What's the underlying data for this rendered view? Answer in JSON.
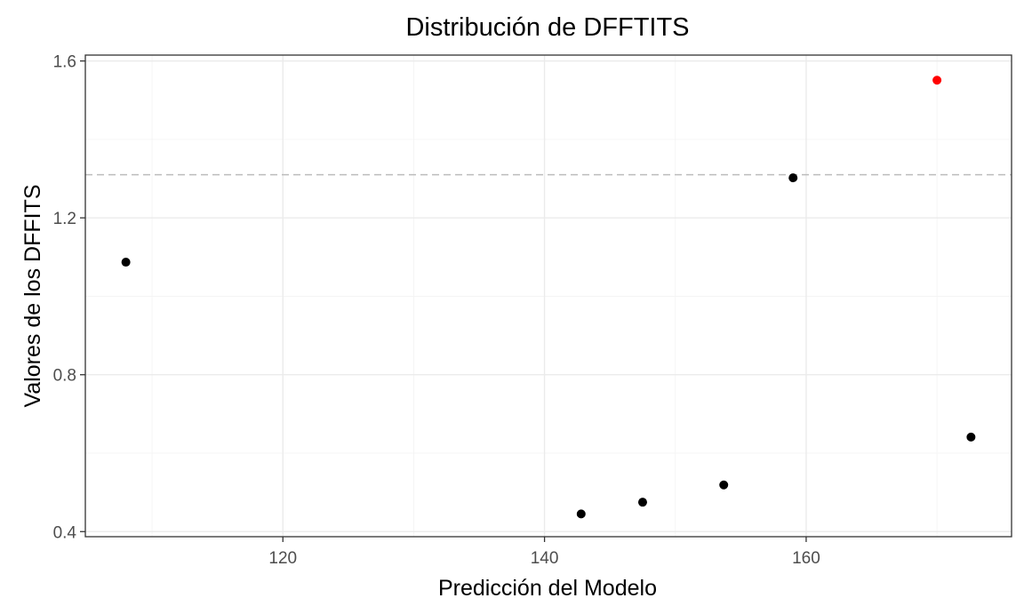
{
  "chart_data": {
    "type": "scatter",
    "title": "Distribución de DFFTITS",
    "xlabel": "Predicción del Modelo",
    "ylabel": "Valores de los DFFITS",
    "xlim": [
      104.9,
      175.7
    ],
    "ylim": [
      0.387,
      1.615
    ],
    "x_ticks": [
      120,
      140,
      160
    ],
    "x_tick_labels": [
      "120",
      "140",
      "160"
    ],
    "x_minor_ticks": [
      110,
      130,
      150,
      170
    ],
    "y_ticks": [
      0.4,
      0.8,
      1.2,
      1.6
    ],
    "y_tick_labels": [
      "0.4",
      "0.8",
      "1.2",
      "1.6"
    ],
    "y_minor_ticks": [
      0.6,
      1.0,
      1.4
    ],
    "threshold": 1.31,
    "grid": true,
    "legend": "none",
    "points": [
      {
        "x": 108.0,
        "y": 1.087,
        "color": "#000000"
      },
      {
        "x": 142.8,
        "y": 0.445,
        "color": "#000000"
      },
      {
        "x": 147.5,
        "y": 0.475,
        "color": "#000000"
      },
      {
        "x": 153.7,
        "y": 0.519,
        "color": "#000000"
      },
      {
        "x": 159.0,
        "y": 1.302,
        "color": "#000000"
      },
      {
        "x": 170.0,
        "y": 1.551,
        "color": "#ff0000"
      },
      {
        "x": 172.6,
        "y": 0.641,
        "color": "#000000"
      }
    ]
  }
}
